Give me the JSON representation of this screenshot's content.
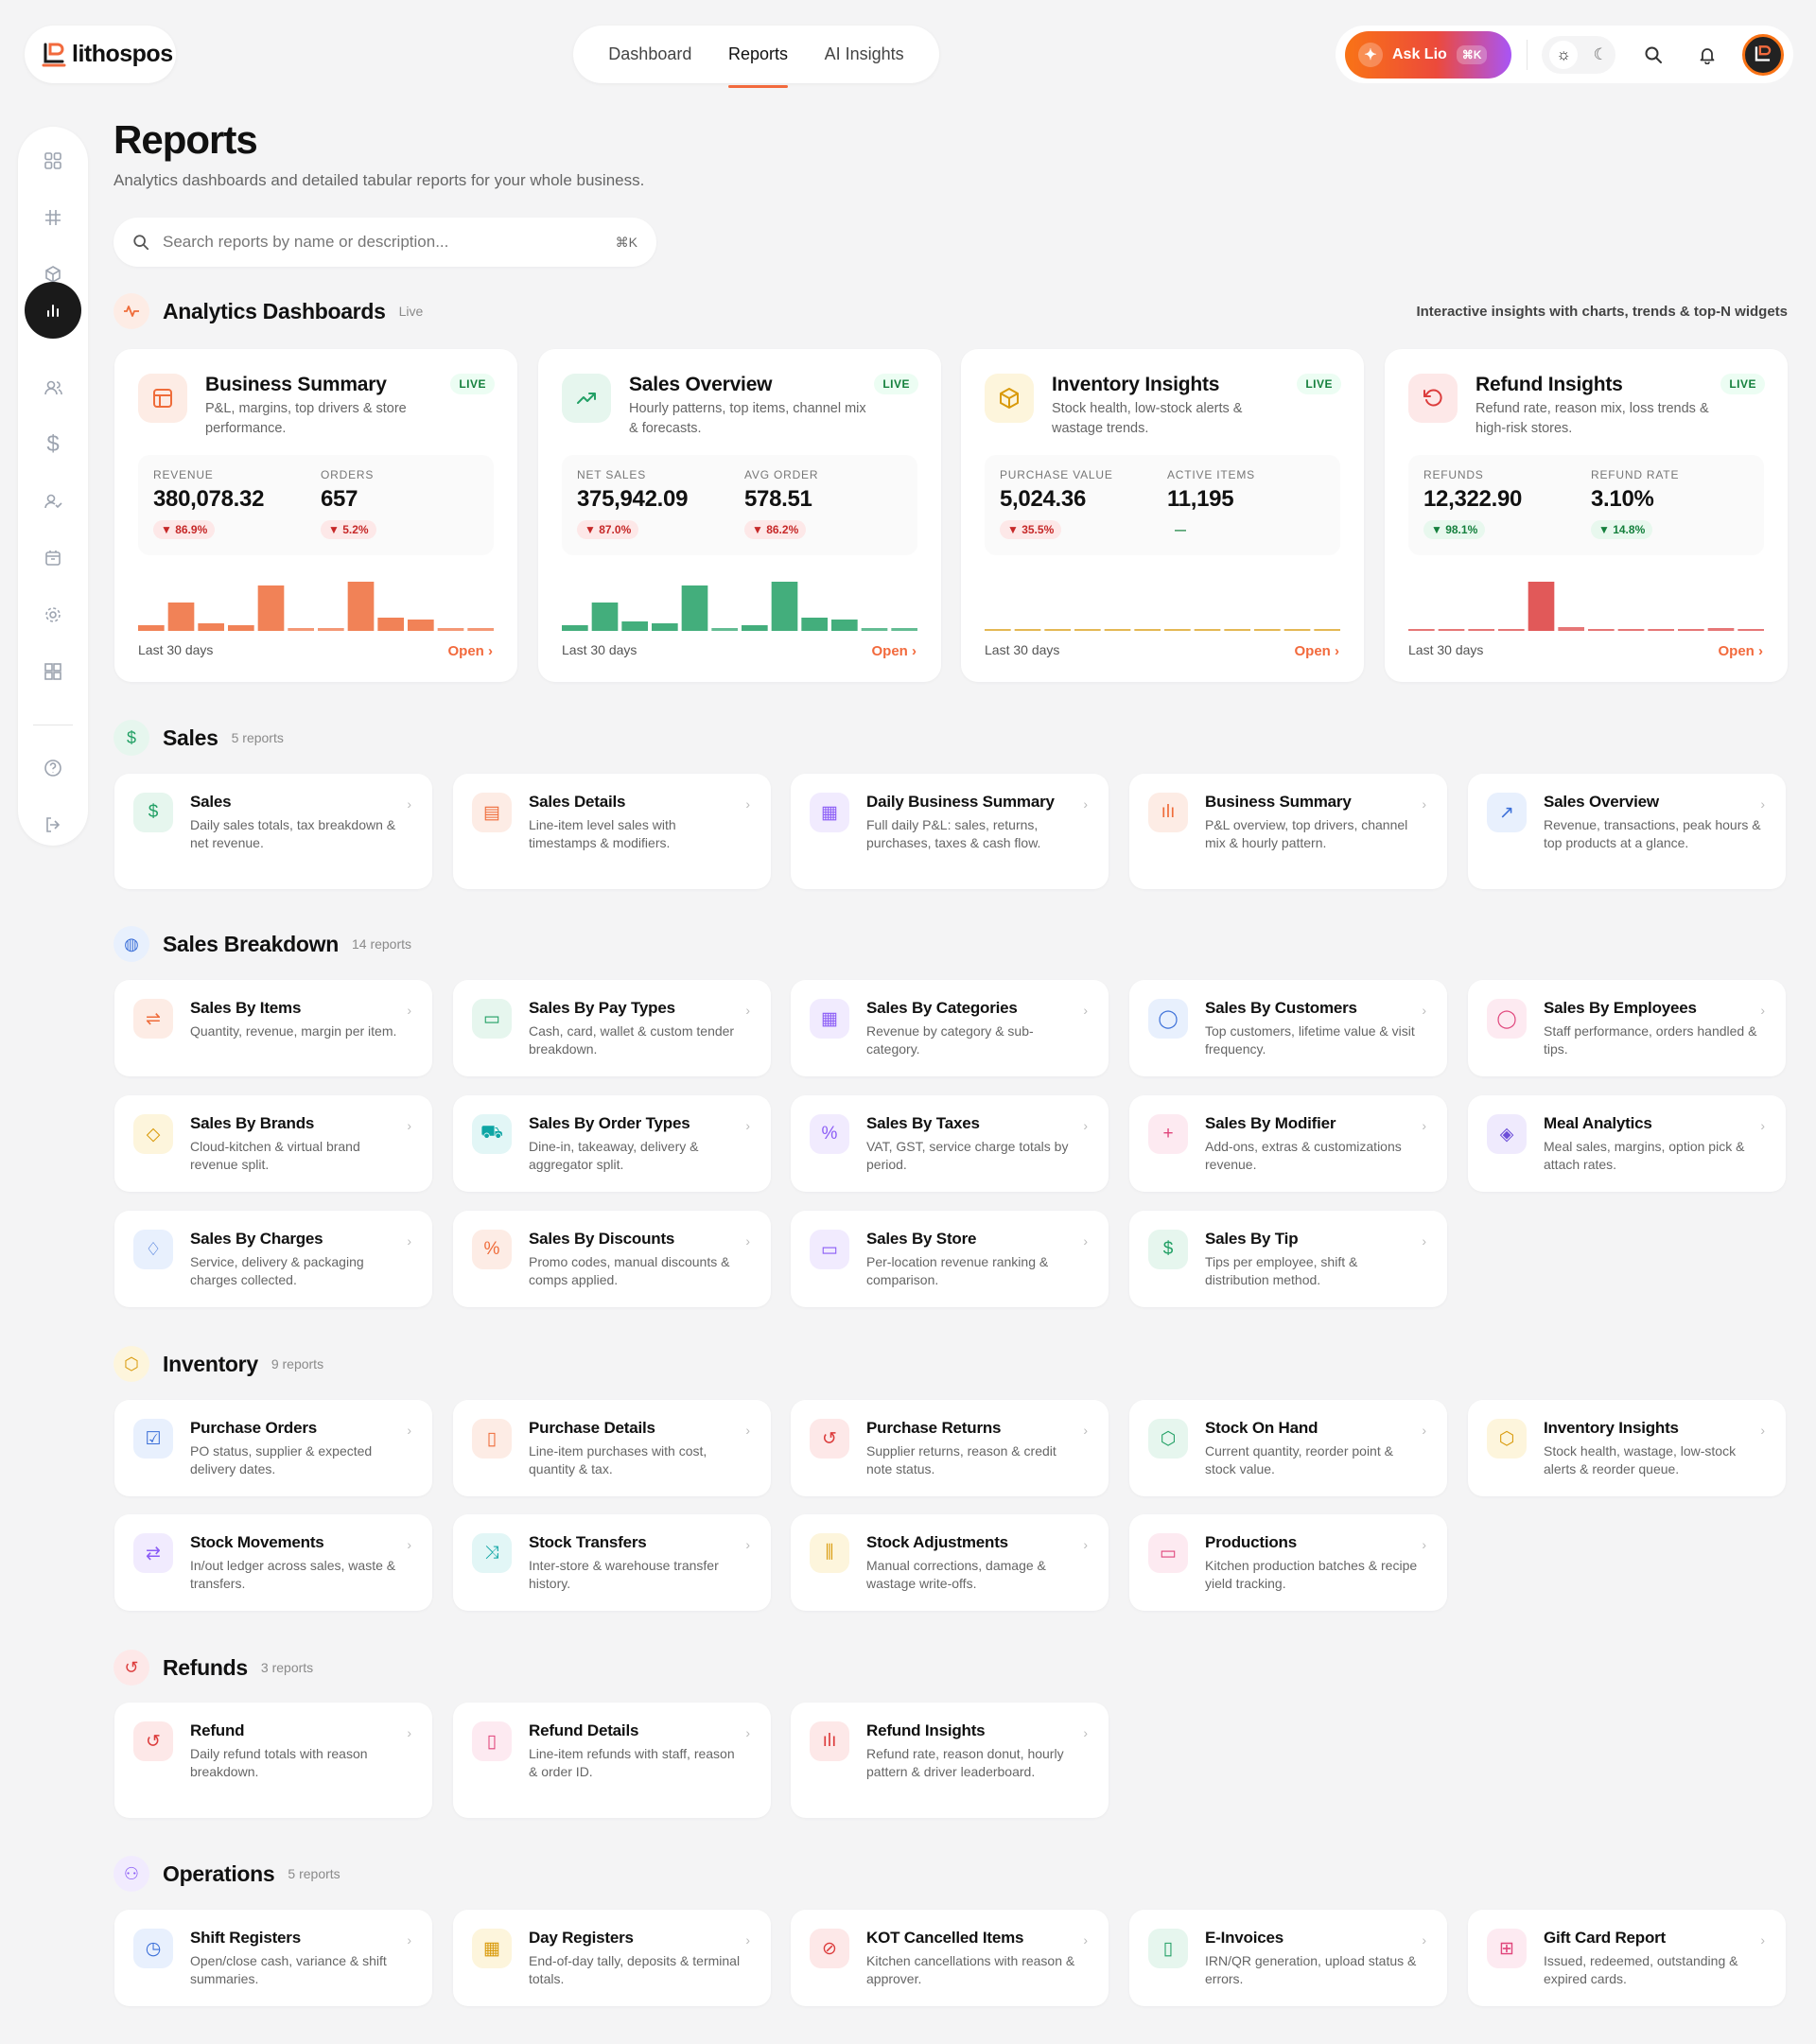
{
  "brand": {
    "name": "lithospos"
  },
  "nav": {
    "tabs": [
      {
        "label": "Dashboard"
      },
      {
        "label": "Reports",
        "active": true
      },
      {
        "label": "AI Insights"
      }
    ]
  },
  "topbar": {
    "ask_label": "Ask Lio",
    "ask_shortcut": "⌘K"
  },
  "page": {
    "title": "Reports",
    "subtitle": "Analytics dashboards and detailed tabular reports for your whole business."
  },
  "search": {
    "placeholder": "Search reports by name or description...",
    "shortcut": "⌘K"
  },
  "analytics": {
    "title": "Analytics Dashboards",
    "tag": "Live",
    "right_text": "Interactive insights with charts, trends & top-N widgets",
    "cards": [
      {
        "title": "Business Summary",
        "badge": "LIVE",
        "desc": "P&L, margins, top drivers & store performance.",
        "icon": "layout-icon",
        "color": "#ef6c3a",
        "bg": "#fdecE5",
        "m1": {
          "label": "REVENUE",
          "value": "380,078.32",
          "delta": "▼ 86.9%",
          "tone": "red"
        },
        "m2": {
          "label": "ORDERS",
          "value": "657",
          "delta": "▼ 5.2%",
          "tone": "red"
        },
        "spark": [
          6,
          30,
          8,
          6,
          48,
          3,
          3,
          52,
          14,
          12,
          3,
          3
        ],
        "period": "Last 30 days",
        "open": "Open"
      },
      {
        "title": "Sales Overview",
        "badge": "LIVE",
        "desc": "Hourly patterns, top items, channel mix & forecasts.",
        "icon": "trending-up-icon",
        "color": "#22a065",
        "bg": "#e6f6ee",
        "m1": {
          "label": "NET SALES",
          "value": "375,942.09",
          "delta": "▼ 87.0%",
          "tone": "red"
        },
        "m2": {
          "label": "AVG ORDER",
          "value": "578.51",
          "delta": "▼ 86.2%",
          "tone": "red"
        },
        "spark": [
          6,
          30,
          10,
          8,
          48,
          3,
          6,
          52,
          14,
          12,
          3,
          3
        ],
        "period": "Last 30 days",
        "open": "Open"
      },
      {
        "title": "Inventory Insights",
        "badge": "LIVE",
        "desc": "Stock health, low-stock alerts & wastage trends.",
        "icon": "box-icon",
        "color": "#d99a0b",
        "bg": "#fdf5dc",
        "m1": {
          "label": "PURCHASE VALUE",
          "value": "5,024.36",
          "delta": "▼ 35.5%",
          "tone": "red"
        },
        "m2": {
          "label": "ACTIVE ITEMS",
          "value": "11,195",
          "delta": "—",
          "tone": "grey"
        },
        "spark": [
          2,
          2,
          2,
          2,
          2,
          2,
          2,
          2,
          2,
          2,
          2,
          2
        ],
        "period": "Last 30 days",
        "open": "Open"
      },
      {
        "title": "Refund Insights",
        "badge": "LIVE",
        "desc": "Refund rate, reason mix, loss trends & high-risk stores.",
        "icon": "rotate-ccw-icon",
        "color": "#dc3c3c",
        "bg": "#fde8e8",
        "m1": {
          "label": "REFUNDS",
          "value": "12,322.90",
          "delta": "▼ 98.1%",
          "tone": "green"
        },
        "m2": {
          "label": "REFUND RATE",
          "value": "3.10%",
          "delta": "▼ 14.8%",
          "tone": "green"
        },
        "spark": [
          2,
          2,
          2,
          2,
          52,
          4,
          2,
          2,
          2,
          2,
          3,
          2
        ],
        "period": "Last 30 days",
        "open": "Open"
      }
    ]
  },
  "sections": [
    {
      "title": "Sales",
      "count": "5 reports",
      "icon": "dollar-icon",
      "icon_glyph": "$",
      "color": "#22a065",
      "bg": "#e6f6ee",
      "items": [
        {
          "title": "Sales",
          "desc": "Daily sales totals, tax breakdown & net revenue.",
          "icon": "dollar-icon",
          "glyph": "$",
          "color": "#22a065",
          "bg": "#e6f6ee"
        },
        {
          "title": "Sales Details",
          "desc": "Line-item level sales with timestamps & modifiers.",
          "icon": "file-text-icon",
          "glyph": "▤",
          "color": "#ef6c3a",
          "bg": "#fdece5"
        },
        {
          "title": "Daily Business Summary",
          "desc": "Full daily P&L: sales, returns, purchases, taxes & cash flow.",
          "icon": "calendar-icon",
          "glyph": "▦",
          "color": "#8b5cf6",
          "bg": "#f1ebfe"
        },
        {
          "title": "Business Summary",
          "desc": "P&L overview, top drivers, channel mix & hourly pattern.",
          "icon": "bar-chart-icon",
          "glyph": "ılı",
          "color": "#ef6c3a",
          "bg": "#fdece5"
        },
        {
          "title": "Sales Overview",
          "desc": "Revenue, transactions, peak hours & top products at a glance.",
          "icon": "trending-up-icon",
          "glyph": "↗",
          "color": "#3b6fd8",
          "bg": "#e8f0fd"
        }
      ]
    },
    {
      "title": "Sales Breakdown",
      "count": "14 reports",
      "icon": "globe-icon",
      "icon_glyph": "◍",
      "color": "#3b6fd8",
      "bg": "#e8f0fd",
      "items": [
        {
          "title": "Sales By Items",
          "desc": "Quantity, revenue, margin per item.",
          "icon": "sliders-icon",
          "glyph": "⇌",
          "color": "#ef6c3a",
          "bg": "#fdece5"
        },
        {
          "title": "Sales By Pay Types",
          "desc": "Cash, card, wallet & custom tender breakdown.",
          "icon": "credit-card-icon",
          "glyph": "▭",
          "color": "#22a065",
          "bg": "#e6f6ee"
        },
        {
          "title": "Sales By Categories",
          "desc": "Revenue by category & sub-category.",
          "icon": "grid-icon",
          "glyph": "▦",
          "color": "#8b5cf6",
          "bg": "#f1ebfe"
        },
        {
          "title": "Sales By Customers",
          "desc": "Top customers, lifetime value & visit frequency.",
          "icon": "user-icon",
          "glyph": "◯",
          "color": "#3b6fd8",
          "bg": "#e8f0fd"
        },
        {
          "title": "Sales By Employees",
          "desc": "Staff performance, orders handled & tips.",
          "icon": "user-icon",
          "glyph": "◯",
          "color": "#e0457b",
          "bg": "#fdeaf1"
        },
        {
          "title": "Sales By Brands",
          "desc": "Cloud-kitchen & virtual brand revenue split.",
          "icon": "tag-icon",
          "glyph": "◇",
          "color": "#d99a0b",
          "bg": "#fdf5dc"
        },
        {
          "title": "Sales By Order Types",
          "desc": "Dine-in, takeaway, delivery & aggregator split.",
          "icon": "cart-icon",
          "glyph": "⛟",
          "color": "#0ea5a4",
          "bg": "#e2f6f6"
        },
        {
          "title": "Sales By Taxes",
          "desc": "VAT, GST, service charge totals by period.",
          "icon": "percent-icon",
          "glyph": "%",
          "color": "#8b5cf6",
          "bg": "#f1ebfe"
        },
        {
          "title": "Sales By Modifier",
          "desc": "Add-ons, extras & customizations revenue.",
          "icon": "plus-icon",
          "glyph": "+",
          "color": "#e0457b",
          "bg": "#fdeaf1"
        },
        {
          "title": "Meal Analytics",
          "desc": "Meal sales, margins, option pick & attach rates.",
          "icon": "layers-icon",
          "glyph": "◈",
          "color": "#6d4fd8",
          "bg": "#efeafd"
        },
        {
          "title": "Sales By Charges",
          "desc": "Service, delivery & packaging charges collected.",
          "icon": "bell-icon",
          "glyph": "♢",
          "color": "#3b6fd8",
          "bg": "#e8f0fd"
        },
        {
          "title": "Sales By Discounts",
          "desc": "Promo codes, manual discounts & comps applied.",
          "icon": "percent-icon",
          "glyph": "%",
          "color": "#ef6c3a",
          "bg": "#fdece5"
        },
        {
          "title": "Sales By Store",
          "desc": "Per-location revenue ranking & comparison.",
          "icon": "store-icon",
          "glyph": "▭",
          "color": "#8b5cf6",
          "bg": "#f1ebfe"
        },
        {
          "title": "Sales By Tip",
          "desc": "Tips per employee, shift & distribution method.",
          "icon": "dollar-icon",
          "glyph": "$",
          "color": "#22a065",
          "bg": "#e6f6ee"
        }
      ]
    },
    {
      "title": "Inventory",
      "count": "9 reports",
      "icon": "box-icon",
      "icon_glyph": "⬡",
      "color": "#d99a0b",
      "bg": "#fdf5dc",
      "items": [
        {
          "title": "Purchase Orders",
          "desc": "PO status, supplier & expected delivery dates.",
          "icon": "check-square-icon",
          "glyph": "☑",
          "color": "#3b6fd8",
          "bg": "#e8f0fd"
        },
        {
          "title": "Purchase Details",
          "desc": "Line-item purchases with cost, quantity & tax.",
          "icon": "file-icon",
          "glyph": "▯",
          "color": "#ef6c3a",
          "bg": "#fdece5"
        },
        {
          "title": "Purchase Returns",
          "desc": "Supplier returns, reason & credit note status.",
          "icon": "rotate-ccw-icon",
          "glyph": "↺",
          "color": "#dc3c3c",
          "bg": "#fde8e8"
        },
        {
          "title": "Stock On Hand",
          "desc": "Current quantity, reorder point & stock value.",
          "icon": "hexagon-icon",
          "glyph": "⬡",
          "color": "#22a065",
          "bg": "#e6f6ee"
        },
        {
          "title": "Inventory Insights",
          "desc": "Stock health, wastage, low-stock alerts & reorder queue.",
          "icon": "box-icon",
          "glyph": "⬡",
          "color": "#d99a0b",
          "bg": "#fdf5dc"
        },
        {
          "title": "Stock Movements",
          "desc": "In/out ledger across sales, waste & transfers.",
          "icon": "repeat-icon",
          "glyph": "⇄",
          "color": "#8b5cf6",
          "bg": "#f1ebfe"
        },
        {
          "title": "Stock Transfers",
          "desc": "Inter-store & warehouse transfer history.",
          "icon": "shuffle-icon",
          "glyph": "⤨",
          "color": "#0ea5a4",
          "bg": "#e2f6f6"
        },
        {
          "title": "Stock Adjustments",
          "desc": "Manual corrections, damage & wastage write-offs.",
          "icon": "adjust-icon",
          "glyph": "⫼",
          "color": "#d99a0b",
          "bg": "#fdf5dc"
        },
        {
          "title": "Productions",
          "desc": "Kitchen production batches & recipe yield tracking.",
          "icon": "folder-icon",
          "glyph": "▭",
          "color": "#e0457b",
          "bg": "#fdeaf1"
        }
      ]
    },
    {
      "title": "Refunds",
      "count": "3 reports",
      "icon": "rotate-ccw-icon",
      "icon_glyph": "↺",
      "color": "#dc3c3c",
      "bg": "#fde8e8",
      "items": [
        {
          "title": "Refund",
          "desc": "Daily refund totals with reason breakdown.",
          "icon": "rotate-ccw-icon",
          "glyph": "↺",
          "color": "#dc3c3c",
          "bg": "#fde8e8"
        },
        {
          "title": "Refund Details",
          "desc": "Line-item refunds with staff, reason & order ID.",
          "icon": "file-icon",
          "glyph": "▯",
          "color": "#e0457b",
          "bg": "#fdeaf1"
        },
        {
          "title": "Refund Insights",
          "desc": "Refund rate, reason donut, hourly pattern & driver leaderboard.",
          "icon": "bar-chart-icon",
          "glyph": "ılı",
          "color": "#dc3c3c",
          "bg": "#fde8e8"
        }
      ]
    },
    {
      "title": "Operations",
      "count": "5 reports",
      "icon": "activity-icon",
      "icon_glyph": "⚇",
      "color": "#8b5cf6",
      "bg": "#f1ebfe",
      "items": [
        {
          "title": "Shift Registers",
          "desc": "Open/close cash, variance & shift summaries.",
          "icon": "clock-icon",
          "glyph": "◷",
          "color": "#3b6fd8",
          "bg": "#e8f0fd"
        },
        {
          "title": "Day Registers",
          "desc": "End-of-day tally, deposits & terminal totals.",
          "icon": "calendar-icon",
          "glyph": "▦",
          "color": "#d99a0b",
          "bg": "#fdf5dc"
        },
        {
          "title": "KOT Cancelled Items",
          "desc": "Kitchen cancellations with reason & approver.",
          "icon": "ban-icon",
          "glyph": "⊘",
          "color": "#dc3c3c",
          "bg": "#fde8e8"
        },
        {
          "title": "E-Invoices",
          "desc": "IRN/QR generation, upload status & errors.",
          "icon": "file-check-icon",
          "glyph": "▯",
          "color": "#22a065",
          "bg": "#e6f6ee"
        },
        {
          "title": "Gift Card Report",
          "desc": "Issued, redeemed, outstanding & expired cards.",
          "icon": "gift-icon",
          "glyph": "⊞",
          "color": "#e0457b",
          "bg": "#fdeaf1"
        }
      ]
    }
  ]
}
